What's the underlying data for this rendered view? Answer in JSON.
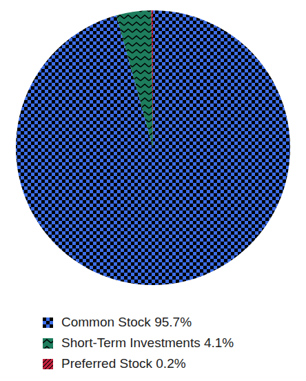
{
  "chart_data": {
    "type": "pie",
    "categories": [
      "Common Stock",
      "Short-Term Investments",
      "Preferred Stock"
    ],
    "values": [
      95.7,
      4.1,
      0.2
    ],
    "value_labels": [
      "95.7%",
      "4.1%",
      "0.2%"
    ],
    "colors": [
      "#3d6ee8",
      "#1d7d5c",
      "#c8223f"
    ],
    "legend": "bottom"
  }
}
